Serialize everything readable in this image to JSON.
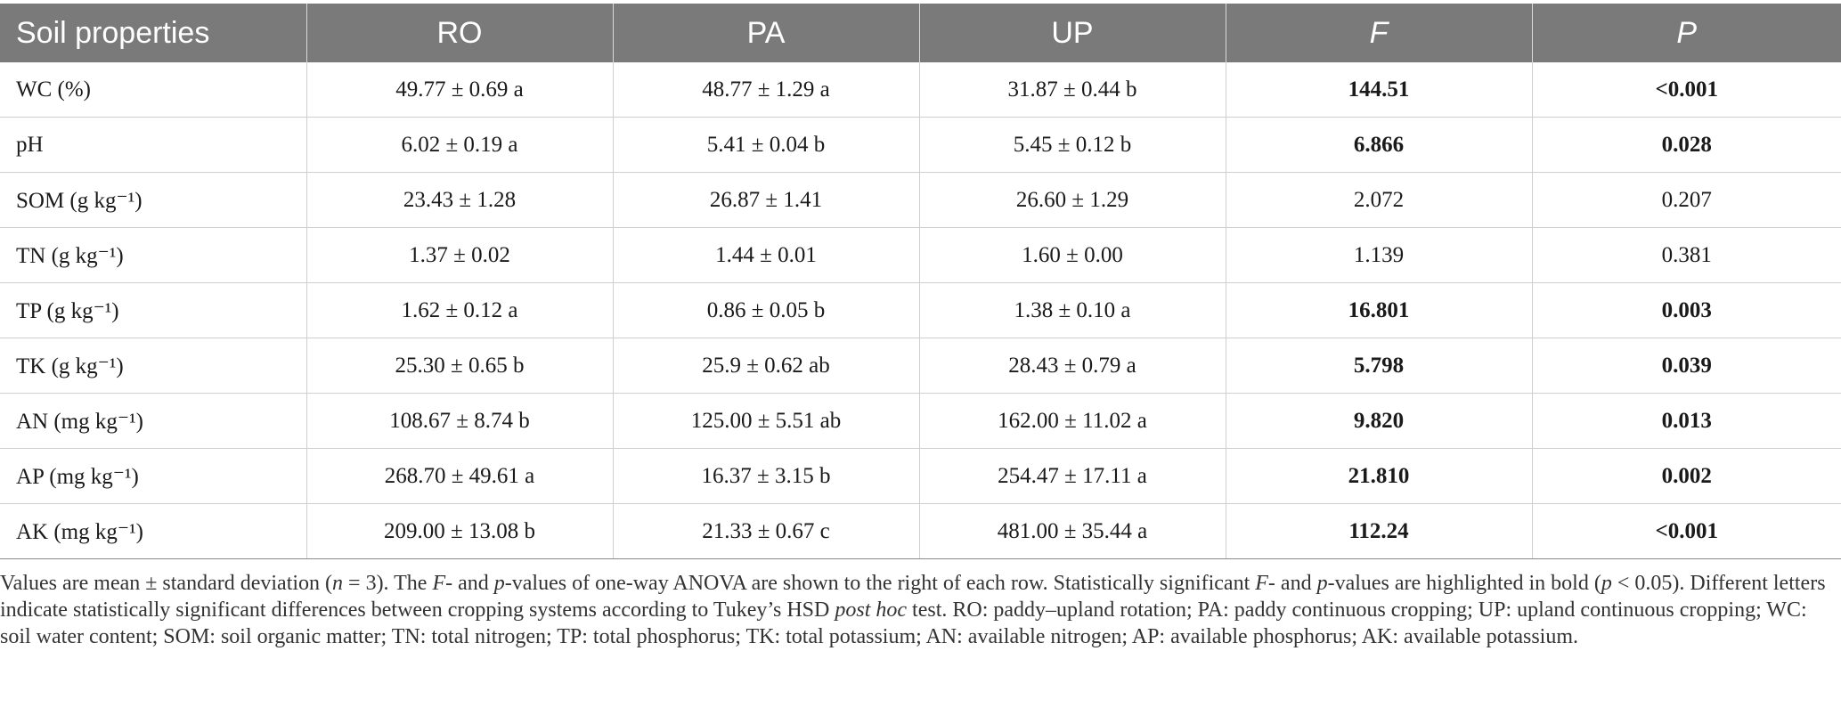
{
  "table": {
    "headers": [
      "Soil properties",
      "RO",
      "PA",
      "UP",
      "F",
      "P"
    ],
    "rows": [
      {
        "property": "WC (%)",
        "ro": "49.77 ± 0.69 a",
        "pa": "48.77 ± 1.29 a",
        "up": "31.87 ± 0.44 b",
        "f": "144.51",
        "p": "<0.001",
        "significant": true
      },
      {
        "property": "pH",
        "ro": "6.02 ± 0.19 a",
        "pa": "5.41 ± 0.04 b",
        "up": "5.45 ± 0.12 b",
        "f": "6.866",
        "p": "0.028",
        "significant": true
      },
      {
        "property": "SOM (g kg⁻¹)",
        "ro": "23.43 ± 1.28",
        "pa": "26.87 ± 1.41",
        "up": "26.60 ± 1.29",
        "f": "2.072",
        "p": "0.207",
        "significant": false
      },
      {
        "property": "TN (g kg⁻¹)",
        "ro": "1.37 ± 0.02",
        "pa": "1.44 ± 0.01",
        "up": "1.60 ± 0.00",
        "f": "1.139",
        "p": "0.381",
        "significant": false
      },
      {
        "property": "TP (g kg⁻¹)",
        "ro": "1.62 ± 0.12 a",
        "pa": "0.86 ± 0.05 b",
        "up": "1.38 ± 0.10 a",
        "f": "16.801",
        "p": "0.003",
        "significant": true
      },
      {
        "property": "TK (g kg⁻¹)",
        "ro": "25.30 ± 0.65 b",
        "pa": "25.9 ± 0.62 ab",
        "up": "28.43 ± 0.79 a",
        "f": "5.798",
        "p": "0.039",
        "significant": true
      },
      {
        "property": "AN (mg kg⁻¹)",
        "ro": "108.67 ± 8.74 b",
        "pa": "125.00 ± 5.51 ab",
        "up": "162.00 ± 11.02 a",
        "f": "9.820",
        "p": "0.013",
        "significant": true
      },
      {
        "property": "AP (mg kg⁻¹)",
        "ro": "268.70 ± 49.61 a",
        "pa": "16.37 ± 3.15 b",
        "up": "254.47 ± 17.11 a",
        "f": "21.810",
        "p": "0.002",
        "significant": true
      },
      {
        "property": "AK (mg kg⁻¹)",
        "ro": "209.00 ± 13.08 b",
        "pa": "21.33 ± 0.67 c",
        "up": "481.00 ± 35.44 a",
        "f": "112.24",
        "p": "<0.001",
        "significant": true
      }
    ]
  },
  "footnote": {
    "part1": "Values are mean ± standard deviation (",
    "n_var": "n",
    "part2": " = 3). The ",
    "f1": "F",
    "part3": "- and ",
    "p1": "p",
    "part4": "-values of one-way ANOVA are shown to the right of each row. Statistically significant ",
    "f2": "F",
    "part5": "- and ",
    "p2": "p",
    "part6": "-values are highlighted in bold (",
    "p3": "p",
    "part7": " < 0.05). Different letters indicate statistically significant differences between cropping systems according to Tukey’s HSD ",
    "posthoc": "post hoc",
    "part8": " test. RO: paddy–upland rotation; PA: paddy continuous cropping; UP: upland continuous cropping; WC: soil water content; SOM: soil organic matter; TN: total nitrogen; TP: total phosphorus; TK: total potassium; AN: available nitrogen; AP: available phosphorus; AK: available potassium."
  },
  "colors": {
    "header_bg": "#7a7a7a",
    "header_text": "#ffffff"
  }
}
